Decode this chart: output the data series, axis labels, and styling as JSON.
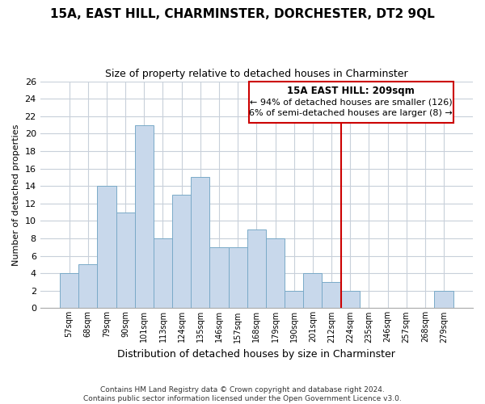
{
  "title": "15A, EAST HILL, CHARMINSTER, DORCHESTER, DT2 9QL",
  "subtitle": "Size of property relative to detached houses in Charminster",
  "xlabel": "Distribution of detached houses by size in Charminster",
  "ylabel": "Number of detached properties",
  "bar_labels": [
    "57sqm",
    "68sqm",
    "79sqm",
    "90sqm",
    "101sqm",
    "113sqm",
    "124sqm",
    "135sqm",
    "146sqm",
    "157sqm",
    "168sqm",
    "179sqm",
    "190sqm",
    "201sqm",
    "212sqm",
    "224sqm",
    "235sqm",
    "246sqm",
    "257sqm",
    "268sqm",
    "279sqm"
  ],
  "bar_heights": [
    4,
    5,
    14,
    11,
    21,
    8,
    13,
    15,
    7,
    7,
    9,
    8,
    2,
    4,
    3,
    2,
    0,
    0,
    0,
    0,
    2
  ],
  "bar_color": "#c8d8eb",
  "bar_edge_color": "#7aaac8",
  "vline_x_index": 14,
  "vline_color": "#cc0000",
  "ylim": [
    0,
    26
  ],
  "yticks": [
    0,
    2,
    4,
    6,
    8,
    10,
    12,
    14,
    16,
    18,
    20,
    22,
    24,
    26
  ],
  "annotation_title": "15A EAST HILL: 209sqm",
  "annotation_line1": "← 94% of detached houses are smaller (126)",
  "annotation_line2": "6% of semi-detached houses are larger (8) →",
  "annotation_box_color": "#ffffff",
  "annotation_box_edge": "#cc0000",
  "footer_line1": "Contains HM Land Registry data © Crown copyright and database right 2024.",
  "footer_line2": "Contains public sector information licensed under the Open Government Licence v3.0.",
  "background_color": "#ffffff",
  "grid_color": "#c8d0da"
}
